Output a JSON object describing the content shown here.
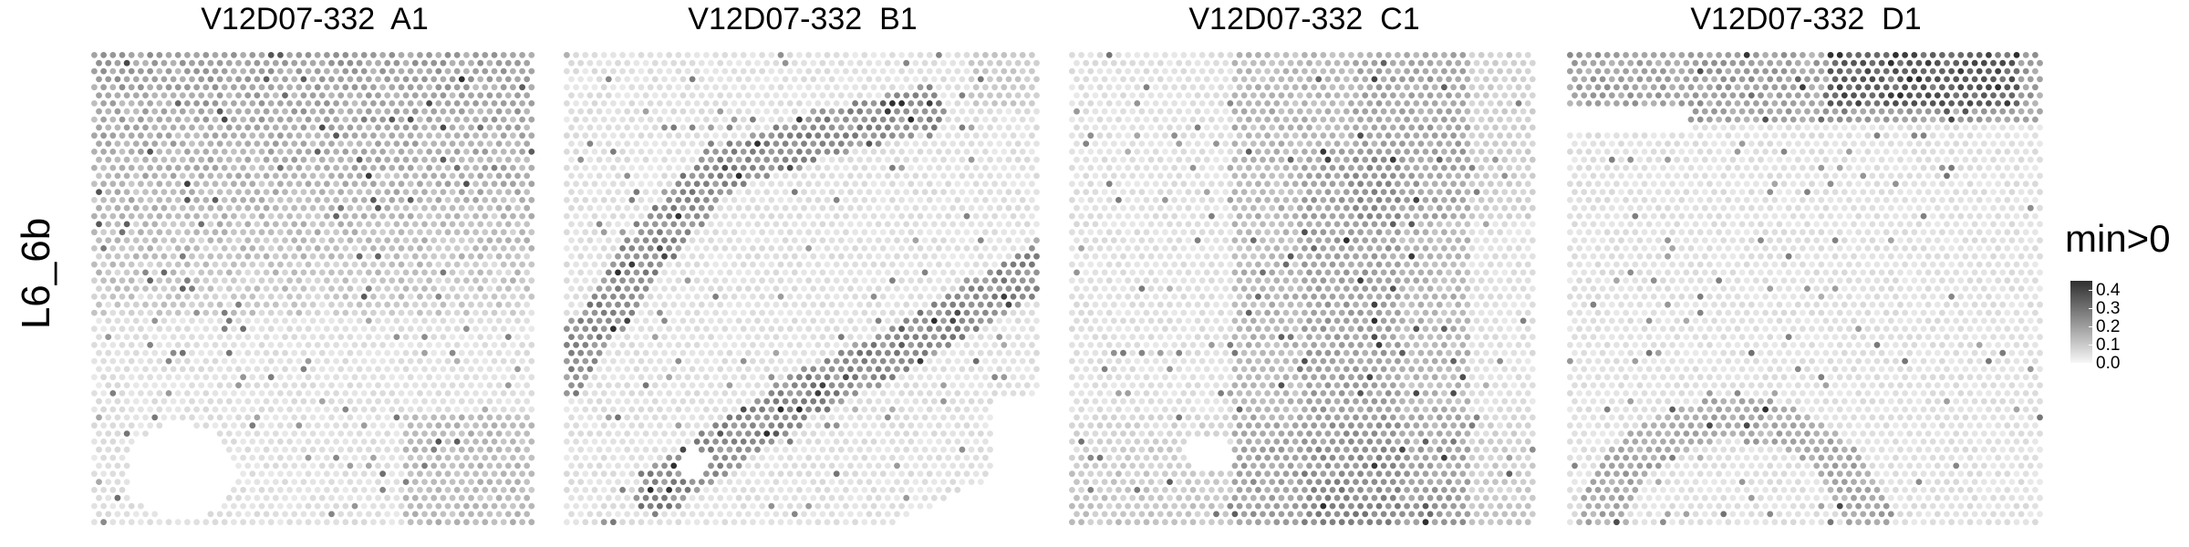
{
  "chart_data": {
    "type": "heatmap",
    "row_label": "L6_6b",
    "panels": [
      {
        "title": "V12D07-332  A1",
        "pattern": "A"
      },
      {
        "title": "V12D07-332  B1",
        "pattern": "B"
      },
      {
        "title": "V12D07-332  C1",
        "pattern": "C"
      },
      {
        "title": "V12D07-332  D1",
        "pattern": "D"
      }
    ],
    "legend": {
      "title": "min>0",
      "range": [
        0.0,
        0.45
      ],
      "ticks": [
        "0.0",
        "0.1",
        "0.2",
        "0.3",
        "0.4"
      ],
      "colors": {
        "low": "#f7f7f7",
        "high": "#2f2f2f"
      },
      "placement": "right"
    }
  }
}
